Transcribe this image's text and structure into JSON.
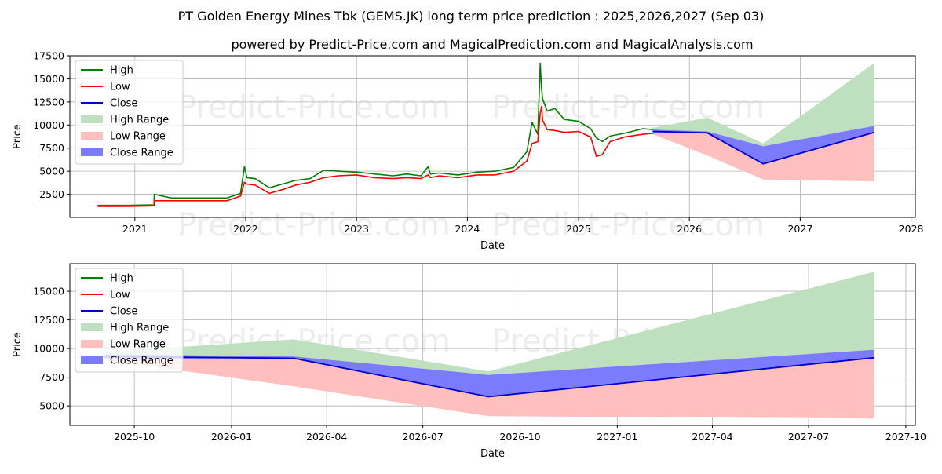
{
  "title": "PT Golden Energy Mines Tbk (GEMS.JK) long term price prediction : 2025,2026,2027 (Sep 03)",
  "subtitle": "powered by Predict-Price.com and MagicalPrediction.com and MagicalAnalysis.com",
  "watermark": "Predict-Price.com",
  "colors": {
    "high": "#008000",
    "low": "#ff0000",
    "close": "#0000cc",
    "high_range": "#bfe0bf",
    "low_range": "#ffbfbf",
    "close_range": "#7b7bff"
  },
  "chart_data": [
    {
      "type": "line",
      "xlabel": "Date",
      "ylabel": "Price",
      "xlim": [
        "2020-06-01",
        "2028-01-15"
      ],
      "ylim": [
        0,
        17500
      ],
      "xticks": [
        "2021",
        "2022",
        "2023",
        "2024",
        "2025",
        "2026",
        "2027",
        "2028"
      ],
      "yticks": [
        "2500",
        "5000",
        "7500",
        "10000",
        "12500",
        "15000",
        "17500"
      ],
      "grid": true,
      "legend_position": "upper-left",
      "legend": [
        "High",
        "Low",
        "Close",
        "High Range",
        "Low Range",
        "Close Range"
      ],
      "series": [
        {
          "name": "High",
          "x": [
            "2020-09-01",
            "2020-12-01",
            "2021-03-05",
            "2021-03-06",
            "2021-05-01",
            "2021-08-01",
            "2021-11-01",
            "2021-12-15",
            "2021-12-28",
            "2022-01-05",
            "2022-02-01",
            "2022-03-20",
            "2022-05-01",
            "2022-06-15",
            "2022-08-01",
            "2022-09-15",
            "2022-11-01",
            "2023-01-01",
            "2023-03-01",
            "2023-05-01",
            "2023-06-15",
            "2023-08-01",
            "2023-08-25",
            "2023-09-01",
            "2023-10-01",
            "2023-12-01",
            "2024-02-01",
            "2024-04-01",
            "2024-06-01",
            "2024-07-15",
            "2024-08-01",
            "2024-08-20",
            "2024-08-28",
            "2024-09-01",
            "2024-09-05",
            "2024-09-20",
            "2024-10-15",
            "2024-11-15",
            "2025-01-01",
            "2025-02-10",
            "2025-03-01",
            "2025-03-20",
            "2025-04-15",
            "2025-06-01",
            "2025-08-01",
            "2025-09-03"
          ],
          "values": [
            1300,
            1300,
            1350,
            2500,
            2100,
            2100,
            2100,
            2600,
            5500,
            4300,
            4200,
            3200,
            3600,
            4000,
            4200,
            5100,
            5000,
            4900,
            4700,
            4500,
            4700,
            4500,
            5500,
            4700,
            4800,
            4600,
            4900,
            5000,
            5400,
            7100,
            10300,
            9000,
            16700,
            14000,
            12800,
            11500,
            11800,
            10600,
            10400,
            9600,
            8600,
            8200,
            8800,
            9100,
            9600,
            9500
          ]
        },
        {
          "name": "Low",
          "x": [
            "2020-09-01",
            "2020-12-01",
            "2021-03-05",
            "2021-03-06",
            "2021-05-01",
            "2021-08-01",
            "2021-11-01",
            "2021-12-15",
            "2021-12-28",
            "2022-01-05",
            "2022-02-01",
            "2022-03-20",
            "2022-05-01",
            "2022-06-15",
            "2022-08-01",
            "2022-09-15",
            "2022-11-01",
            "2023-01-01",
            "2023-03-01",
            "2023-05-01",
            "2023-06-15",
            "2023-08-01",
            "2023-08-25",
            "2023-09-01",
            "2023-10-01",
            "2023-12-01",
            "2024-02-01",
            "2024-04-01",
            "2024-06-01",
            "2024-07-15",
            "2024-08-01",
            "2024-08-20",
            "2024-08-28",
            "2024-09-01",
            "2024-09-05",
            "2024-09-20",
            "2024-10-15",
            "2024-11-15",
            "2025-01-01",
            "2025-02-10",
            "2025-03-01",
            "2025-03-20",
            "2025-04-15",
            "2025-06-01",
            "2025-08-01",
            "2025-09-03"
          ],
          "values": [
            1200,
            1200,
            1250,
            1800,
            1800,
            1800,
            1800,
            2300,
            3800,
            3600,
            3500,
            2600,
            3000,
            3500,
            3800,
            4300,
            4500,
            4600,
            4300,
            4200,
            4300,
            4200,
            4600,
            4300,
            4500,
            4300,
            4600,
            4600,
            5000,
            6100,
            8000,
            8200,
            11300,
            12000,
            10500,
            9500,
            9400,
            9200,
            9300,
            8700,
            6600,
            6800,
            8200,
            8700,
            9000,
            9100
          ]
        },
        {
          "name": "Close",
          "x": [
            "2025-09-03",
            "2026-03-01",
            "2026-09-01",
            "2027-09-01"
          ],
          "values": [
            9300,
            9150,
            5800,
            9200
          ]
        },
        {
          "name": "High Range",
          "x": [
            "2025-09-03",
            "2026-03-01",
            "2026-09-01",
            "2027-09-01"
          ],
          "upper": [
            9700,
            10800,
            8000,
            16700
          ],
          "lower": [
            9300,
            9150,
            7700,
            9900
          ]
        },
        {
          "name": "Low Range",
          "x": [
            "2025-09-03",
            "2026-03-01",
            "2026-09-01",
            "2027-09-01"
          ],
          "upper": [
            9300,
            9150,
            5800,
            9200
          ],
          "lower": [
            9000,
            6700,
            4100,
            3900
          ]
        },
        {
          "name": "Close Range",
          "x": [
            "2025-09-03",
            "2026-03-01",
            "2026-09-01",
            "2027-09-01"
          ],
          "upper": [
            9500,
            9300,
            7700,
            9900
          ],
          "lower": [
            9100,
            9150,
            5800,
            9200
          ]
        }
      ]
    },
    {
      "type": "line",
      "xlabel": "Date",
      "ylabel": "Price",
      "xlim": [
        "2025-08-01",
        "2027-10-10"
      ],
      "ylim": [
        3300,
        17400
      ],
      "xticks": [
        "2025-10",
        "2026-01",
        "2026-04",
        "2026-07",
        "2026-10",
        "2027-01",
        "2027-04",
        "2027-07",
        "2027-10"
      ],
      "yticks": [
        "5000",
        "7500",
        "10000",
        "12500",
        "15000"
      ],
      "grid": true,
      "legend_position": "upper-left",
      "legend": [
        "High",
        "Low",
        "Close",
        "High Range",
        "Low Range",
        "Close Range"
      ],
      "series": [
        {
          "name": "Close",
          "x": [
            "2025-09-03",
            "2026-03-01",
            "2026-09-01",
            "2027-09-01"
          ],
          "values": [
            9300,
            9150,
            5800,
            9200
          ]
        },
        {
          "name": "High Range",
          "x": [
            "2025-09-03",
            "2026-03-01",
            "2026-09-01",
            "2027-09-01"
          ],
          "upper": [
            9700,
            10800,
            8000,
            16700
          ],
          "lower": [
            9300,
            9150,
            7700,
            9900
          ]
        },
        {
          "name": "Low Range",
          "x": [
            "2025-09-03",
            "2026-03-01",
            "2026-09-01",
            "2027-09-01"
          ],
          "upper": [
            9300,
            9150,
            5800,
            9200
          ],
          "lower": [
            9000,
            6700,
            4100,
            3900
          ]
        },
        {
          "name": "Close Range",
          "x": [
            "2025-09-03",
            "2026-03-01",
            "2026-09-01",
            "2027-09-01"
          ],
          "upper": [
            9500,
            9300,
            7700,
            9900
          ],
          "lower": [
            9100,
            9150,
            5800,
            9200
          ]
        }
      ]
    }
  ]
}
